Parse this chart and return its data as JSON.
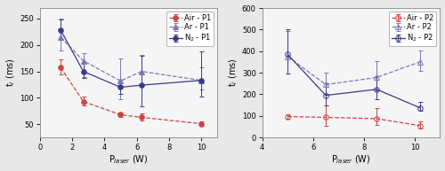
{
  "left": {
    "xlabel": "P$_{laser}$ (W)",
    "ylabel": "t$_i$ (ms)",
    "xlim": [
      0,
      11
    ],
    "ylim": [
      25,
      270
    ],
    "xticks": [
      0,
      2,
      4,
      6,
      8,
      10
    ],
    "yticks": [
      50,
      100,
      150,
      200,
      250
    ],
    "series": [
      {
        "label": "Air - P1",
        "x": [
          1.3,
          2.7,
          5.0,
          6.3,
          10.0
        ],
        "y": [
          157,
          93,
          68,
          63,
          51
        ],
        "yerr_lo": [
          12,
          8,
          4,
          6,
          4
        ],
        "yerr_hi": [
          15,
          10,
          5,
          8,
          5
        ],
        "color": "#cc4444",
        "marker": "o",
        "markersize": 4,
        "linestyle": "--",
        "fillstyle": "full",
        "zorder": 3
      },
      {
        "label": "Ar - P1",
        "x": [
          1.3,
          2.7,
          5.0,
          6.3,
          10.0
        ],
        "y": [
          215,
          170,
          132,
          150,
          133
        ],
        "yerr_lo": [
          25,
          30,
          35,
          25,
          18
        ],
        "yerr_hi": [
          35,
          15,
          42,
          32,
          25
        ],
        "color": "#7878b8",
        "marker": "^",
        "markersize": 4,
        "linestyle": "--",
        "fillstyle": "full",
        "zorder": 3
      },
      {
        "label": "N$_2$ - P1",
        "x": [
          1.3,
          2.7,
          5.0,
          6.3,
          10.0
        ],
        "y": [
          228,
          150,
          120,
          124,
          133
        ],
        "yerr_lo": [
          18,
          12,
          12,
          40,
          30
        ],
        "yerr_hi": [
          20,
          15,
          15,
          55,
          55
        ],
        "color": "#3a3a8c",
        "marker": "o",
        "markersize": 4,
        "linestyle": "-",
        "fillstyle": "full",
        "zorder": 3
      }
    ]
  },
  "right": {
    "xlabel": "P$_{laser}$ (W)",
    "ylabel": "t$_i$ (ms)",
    "xlim": [
      4,
      11
    ],
    "ylim": [
      0,
      600
    ],
    "xticks": [
      4,
      6,
      8,
      10
    ],
    "yticks": [
      0,
      100,
      200,
      300,
      400,
      500,
      600
    ],
    "series": [
      {
        "label": "Air - P2",
        "x": [
          5.0,
          6.5,
          8.5,
          10.2
        ],
        "y": [
          97,
          93,
          87,
          55
        ],
        "yerr_lo": [
          10,
          40,
          30,
          15
        ],
        "yerr_hi": [
          12,
          55,
          50,
          20
        ],
        "color": "#cc4444",
        "marker": "o",
        "markersize": 4,
        "linestyle": "--",
        "fillstyle": "none",
        "zorder": 3
      },
      {
        "label": "Ar - P2",
        "x": [
          5.0,
          6.5,
          8.5,
          10.2
        ],
        "y": [
          375,
          245,
          278,
          350
        ],
        "yerr_lo": [
          80,
          45,
          60,
          40
        ],
        "yerr_hi": [
          120,
          55,
          75,
          55
        ],
        "color": "#7878b8",
        "marker": "^",
        "markersize": 4,
        "linestyle": "--",
        "fillstyle": "none",
        "zorder": 3
      },
      {
        "label": "N$_2$ - P2",
        "x": [
          5.0,
          6.5,
          8.5,
          10.2
        ],
        "y": [
          385,
          195,
          223,
          138
        ],
        "yerr_lo": [
          90,
          45,
          45,
          15
        ],
        "yerr_hi": [
          115,
          55,
          60,
          25
        ],
        "color": "#3a3a8c",
        "marker": "o",
        "markersize": 4,
        "linestyle": "-",
        "fillstyle": "none",
        "zorder": 3
      }
    ]
  },
  "fig_bg": "#e8e8e8",
  "ax_bg": "#f5f5f5",
  "fontsize_labels": 7,
  "fontsize_ticks": 6,
  "fontsize_legend": 6
}
